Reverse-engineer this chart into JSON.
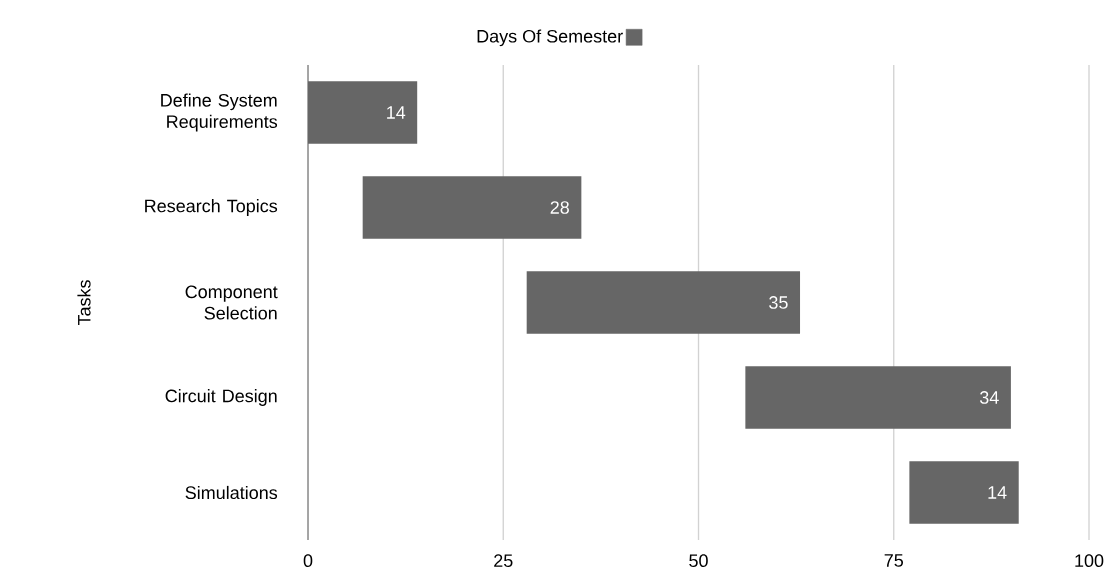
{
  "chart_data": {
    "type": "bar",
    "orientation": "horizontal",
    "ylabel": "Tasks",
    "categories": [
      "Define System Requirements",
      "Research Topics",
      "Component Selection",
      "Circuit Design",
      "Simulations"
    ],
    "series": [
      {
        "name": "Days Of Semester",
        "color": "#666666",
        "values": [
          14,
          28,
          35,
          34,
          14
        ],
        "base": [
          0,
          7,
          28,
          56,
          77
        ]
      }
    ],
    "xlim": [
      0,
      100
    ],
    "xticks": [
      0,
      25,
      50,
      75,
      100
    ],
    "grid": "x",
    "legend": "top",
    "data_labels": true
  }
}
